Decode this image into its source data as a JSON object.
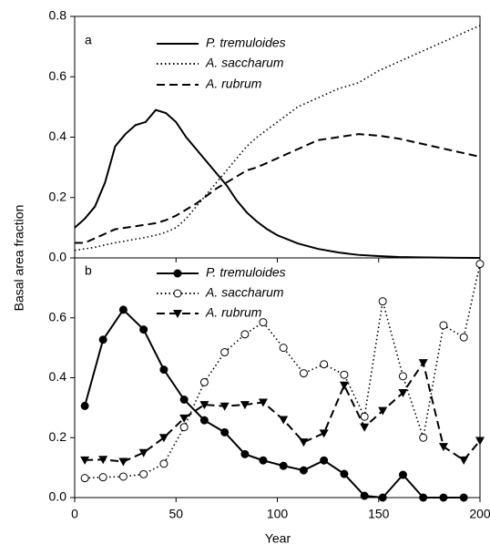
{
  "chart_data": [
    {
      "type": "line",
      "panel_label": "a",
      "y_label": "Basal area fraction",
      "x": [
        0,
        5,
        10,
        15,
        20,
        25,
        30,
        35,
        40,
        45,
        50,
        55,
        60,
        65,
        70,
        75,
        80,
        85,
        90,
        95,
        100,
        110,
        120,
        130,
        140,
        150,
        160,
        170,
        180,
        190,
        200
      ],
      "xlim": [
        0,
        200
      ],
      "ylim": [
        0,
        0.8
      ],
      "yticks": [
        {
          "value": 0,
          "label": "0.0"
        },
        0.2,
        0.4,
        0.6,
        0.8
      ],
      "series": [
        {
          "name": "P. tremuloides",
          "color": "#000000",
          "line_style": "solid",
          "values": [
            0.1,
            0.13,
            0.17,
            0.25,
            0.37,
            0.41,
            0.44,
            0.45,
            0.49,
            0.48,
            0.45,
            0.4,
            0.36,
            0.32,
            0.28,
            0.24,
            0.19,
            0.15,
            0.12,
            0.095,
            0.075,
            0.048,
            0.03,
            0.018,
            0.01,
            0.006,
            0.003,
            0.002,
            0.001,
            0.0005,
            0
          ]
        },
        {
          "name": "A. saccharum",
          "color": "#000000",
          "line_style": "dotted",
          "values": [
            0.025,
            0.03,
            0.035,
            0.043,
            0.05,
            0.056,
            0.062,
            0.068,
            0.075,
            0.085,
            0.1,
            0.13,
            0.17,
            0.21,
            0.25,
            0.29,
            0.33,
            0.37,
            0.4,
            0.425,
            0.45,
            0.5,
            0.53,
            0.56,
            0.58,
            0.62,
            0.65,
            0.68,
            0.71,
            0.74,
            0.77
          ]
        },
        {
          "name": "A. rubrum",
          "color": "#000000",
          "line_style": "dashed",
          "values": [
            0.05,
            0.05,
            0.065,
            0.08,
            0.095,
            0.1,
            0.105,
            0.11,
            0.115,
            0.125,
            0.14,
            0.16,
            0.18,
            0.205,
            0.23,
            0.25,
            0.27,
            0.29,
            0.3,
            0.315,
            0.33,
            0.36,
            0.39,
            0.4,
            0.41,
            0.405,
            0.395,
            0.38,
            0.365,
            0.35,
            0.335
          ]
        }
      ]
    },
    {
      "type": "line",
      "panel_label": "b",
      "x_label": "Year",
      "x": [
        5,
        14,
        24,
        34,
        44,
        54,
        64,
        74,
        84,
        93,
        103,
        113,
        123,
        133,
        143,
        152,
        162,
        172,
        182,
        192,
        200
      ],
      "xlim": [
        0,
        200
      ],
      "xticks": [
        0,
        50,
        100,
        150,
        200
      ],
      "ylim": [
        0,
        0.8
      ],
      "yticks": [
        {
          "value": 0,
          "label": "0.0"
        },
        0.2,
        0.4,
        0.6
      ],
      "series": [
        {
          "name": "P. tremuloides",
          "color": "#000000",
          "line_style": "solid",
          "marker": "circle-filled",
          "values": [
            0.306,
            0.527,
            0.627,
            0.561,
            0.427,
            0.327,
            0.258,
            0.218,
            0.145,
            0.124,
            0.106,
            0.091,
            0.124,
            0.079,
            0.006,
            0,
            0.076,
            0,
            0,
            0,
            null
          ]
        },
        {
          "name": "A. saccharum",
          "color": "#000000",
          "line_style": "dotted",
          "marker": "circle-open",
          "values": [
            0.065,
            0.068,
            0.07,
            0.078,
            0.113,
            0.235,
            0.385,
            0.485,
            0.545,
            0.585,
            0.5,
            0.415,
            0.445,
            0.41,
            0.27,
            0.655,
            0.405,
            0.2,
            0.575,
            0.535,
            0.78
          ]
        },
        {
          "name": "A. rubrum",
          "color": "#000000",
          "line_style": "dashed",
          "marker": "triangle-down",
          "values": [
            0.125,
            0.127,
            0.12,
            0.15,
            0.2,
            0.265,
            0.31,
            0.305,
            0.31,
            0.318,
            0.26,
            0.185,
            0.215,
            0.375,
            0.235,
            0.29,
            0.35,
            0.45,
            0.17,
            0.125,
            0.19
          ]
        }
      ]
    }
  ]
}
